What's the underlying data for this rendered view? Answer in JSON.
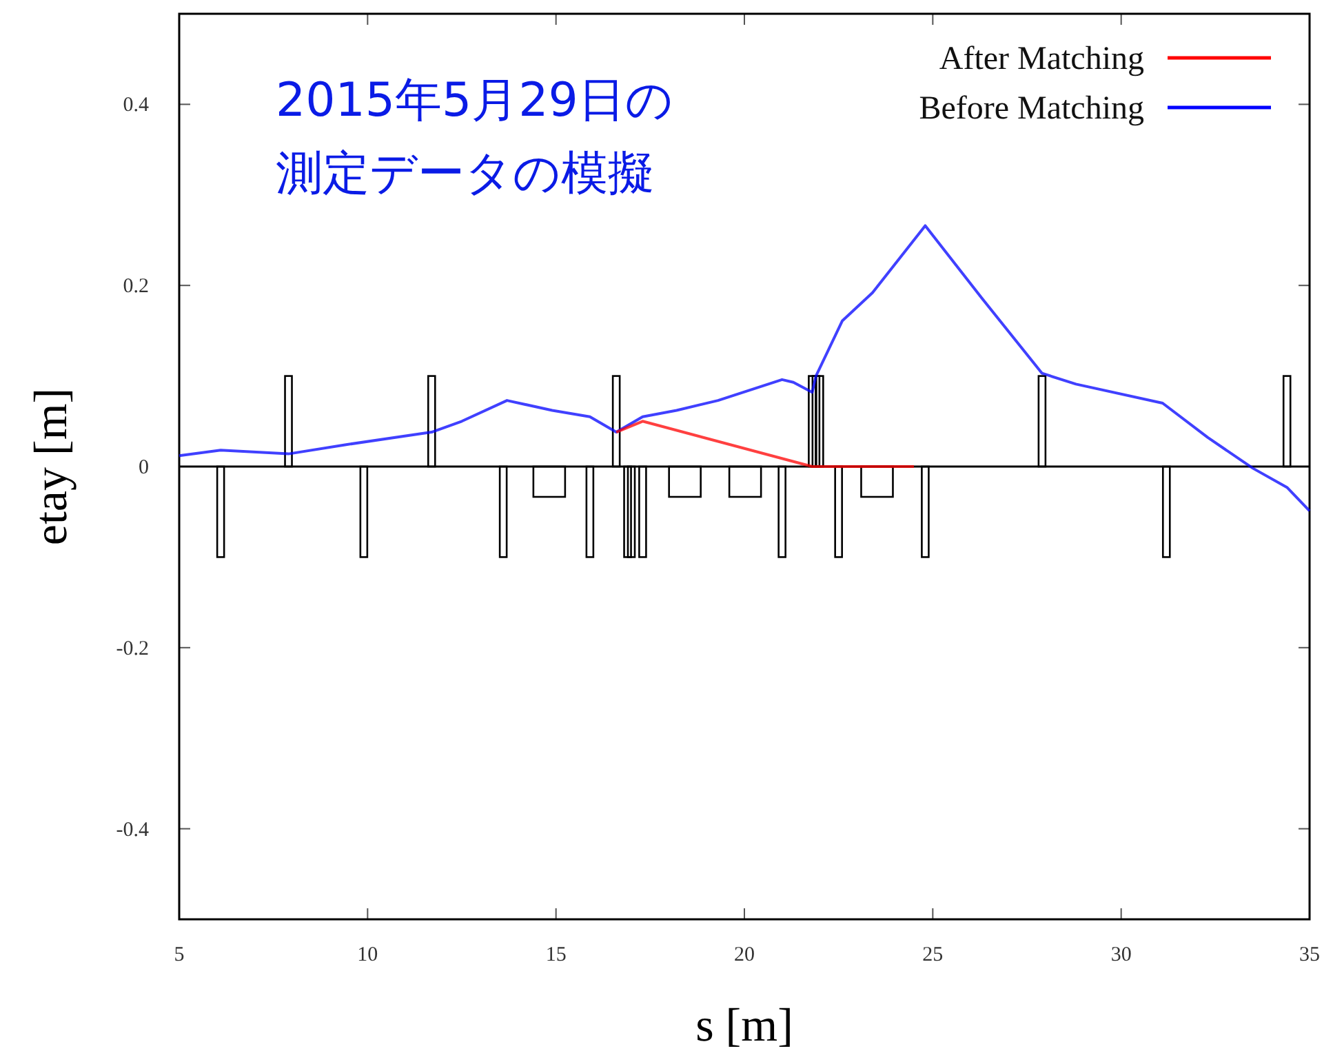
{
  "chart_data": {
    "type": "line",
    "xlabel": "s [m]",
    "ylabel": "etay [m]",
    "xlim": [
      5,
      35
    ],
    "ylim": [
      -0.5,
      0.5
    ],
    "xticks": [
      5,
      10,
      15,
      20,
      25,
      30,
      35
    ],
    "yticks": [
      {
        "value": -0.4,
        "label": "-0.4"
      },
      {
        "value": -0.2,
        "label": "-0.2"
      },
      0,
      {
        "value": 0.2,
        "label": "0.2"
      },
      {
        "value": 0.4,
        "label": "0.4"
      }
    ],
    "grid": false,
    "legend": "top right",
    "ref_lines": [
      {
        "axis": "y",
        "value": 0,
        "color": "#000000"
      }
    ],
    "annotations": [
      "2015年5月29日の",
      "測定データの模擬"
    ],
    "series": [
      {
        "name": "After Matching",
        "color": "#ff0000",
        "x": [
          16.6,
          17.3,
          21.8,
          24.5
        ],
        "values": [
          0.038,
          0.05,
          0.0,
          0.0
        ]
      },
      {
        "name": "Before Matching",
        "color": "#0000ff",
        "x": [
          5,
          6.1,
          7.9,
          9.4,
          11.7,
          12.5,
          13.7,
          14.9,
          15.9,
          16.6,
          17.3,
          18.2,
          19.3,
          21.0,
          21.3,
          21.8,
          21.9,
          22.6,
          23.4,
          24.8,
          26.3,
          27.9,
          28.8,
          31.1,
          32.3,
          33.5,
          34.4,
          35
        ],
        "values": [
          0.012,
          0.018,
          0.014,
          0.024,
          0.038,
          0.05,
          0.073,
          0.062,
          0.055,
          0.038,
          0.055,
          0.062,
          0.073,
          0.096,
          0.093,
          0.082,
          0.1,
          0.161,
          0.192,
          0.266,
          0.186,
          0.103,
          0.091,
          0.07,
          0.032,
          -0.002,
          -0.023,
          -0.049
        ]
      }
    ]
  }
}
